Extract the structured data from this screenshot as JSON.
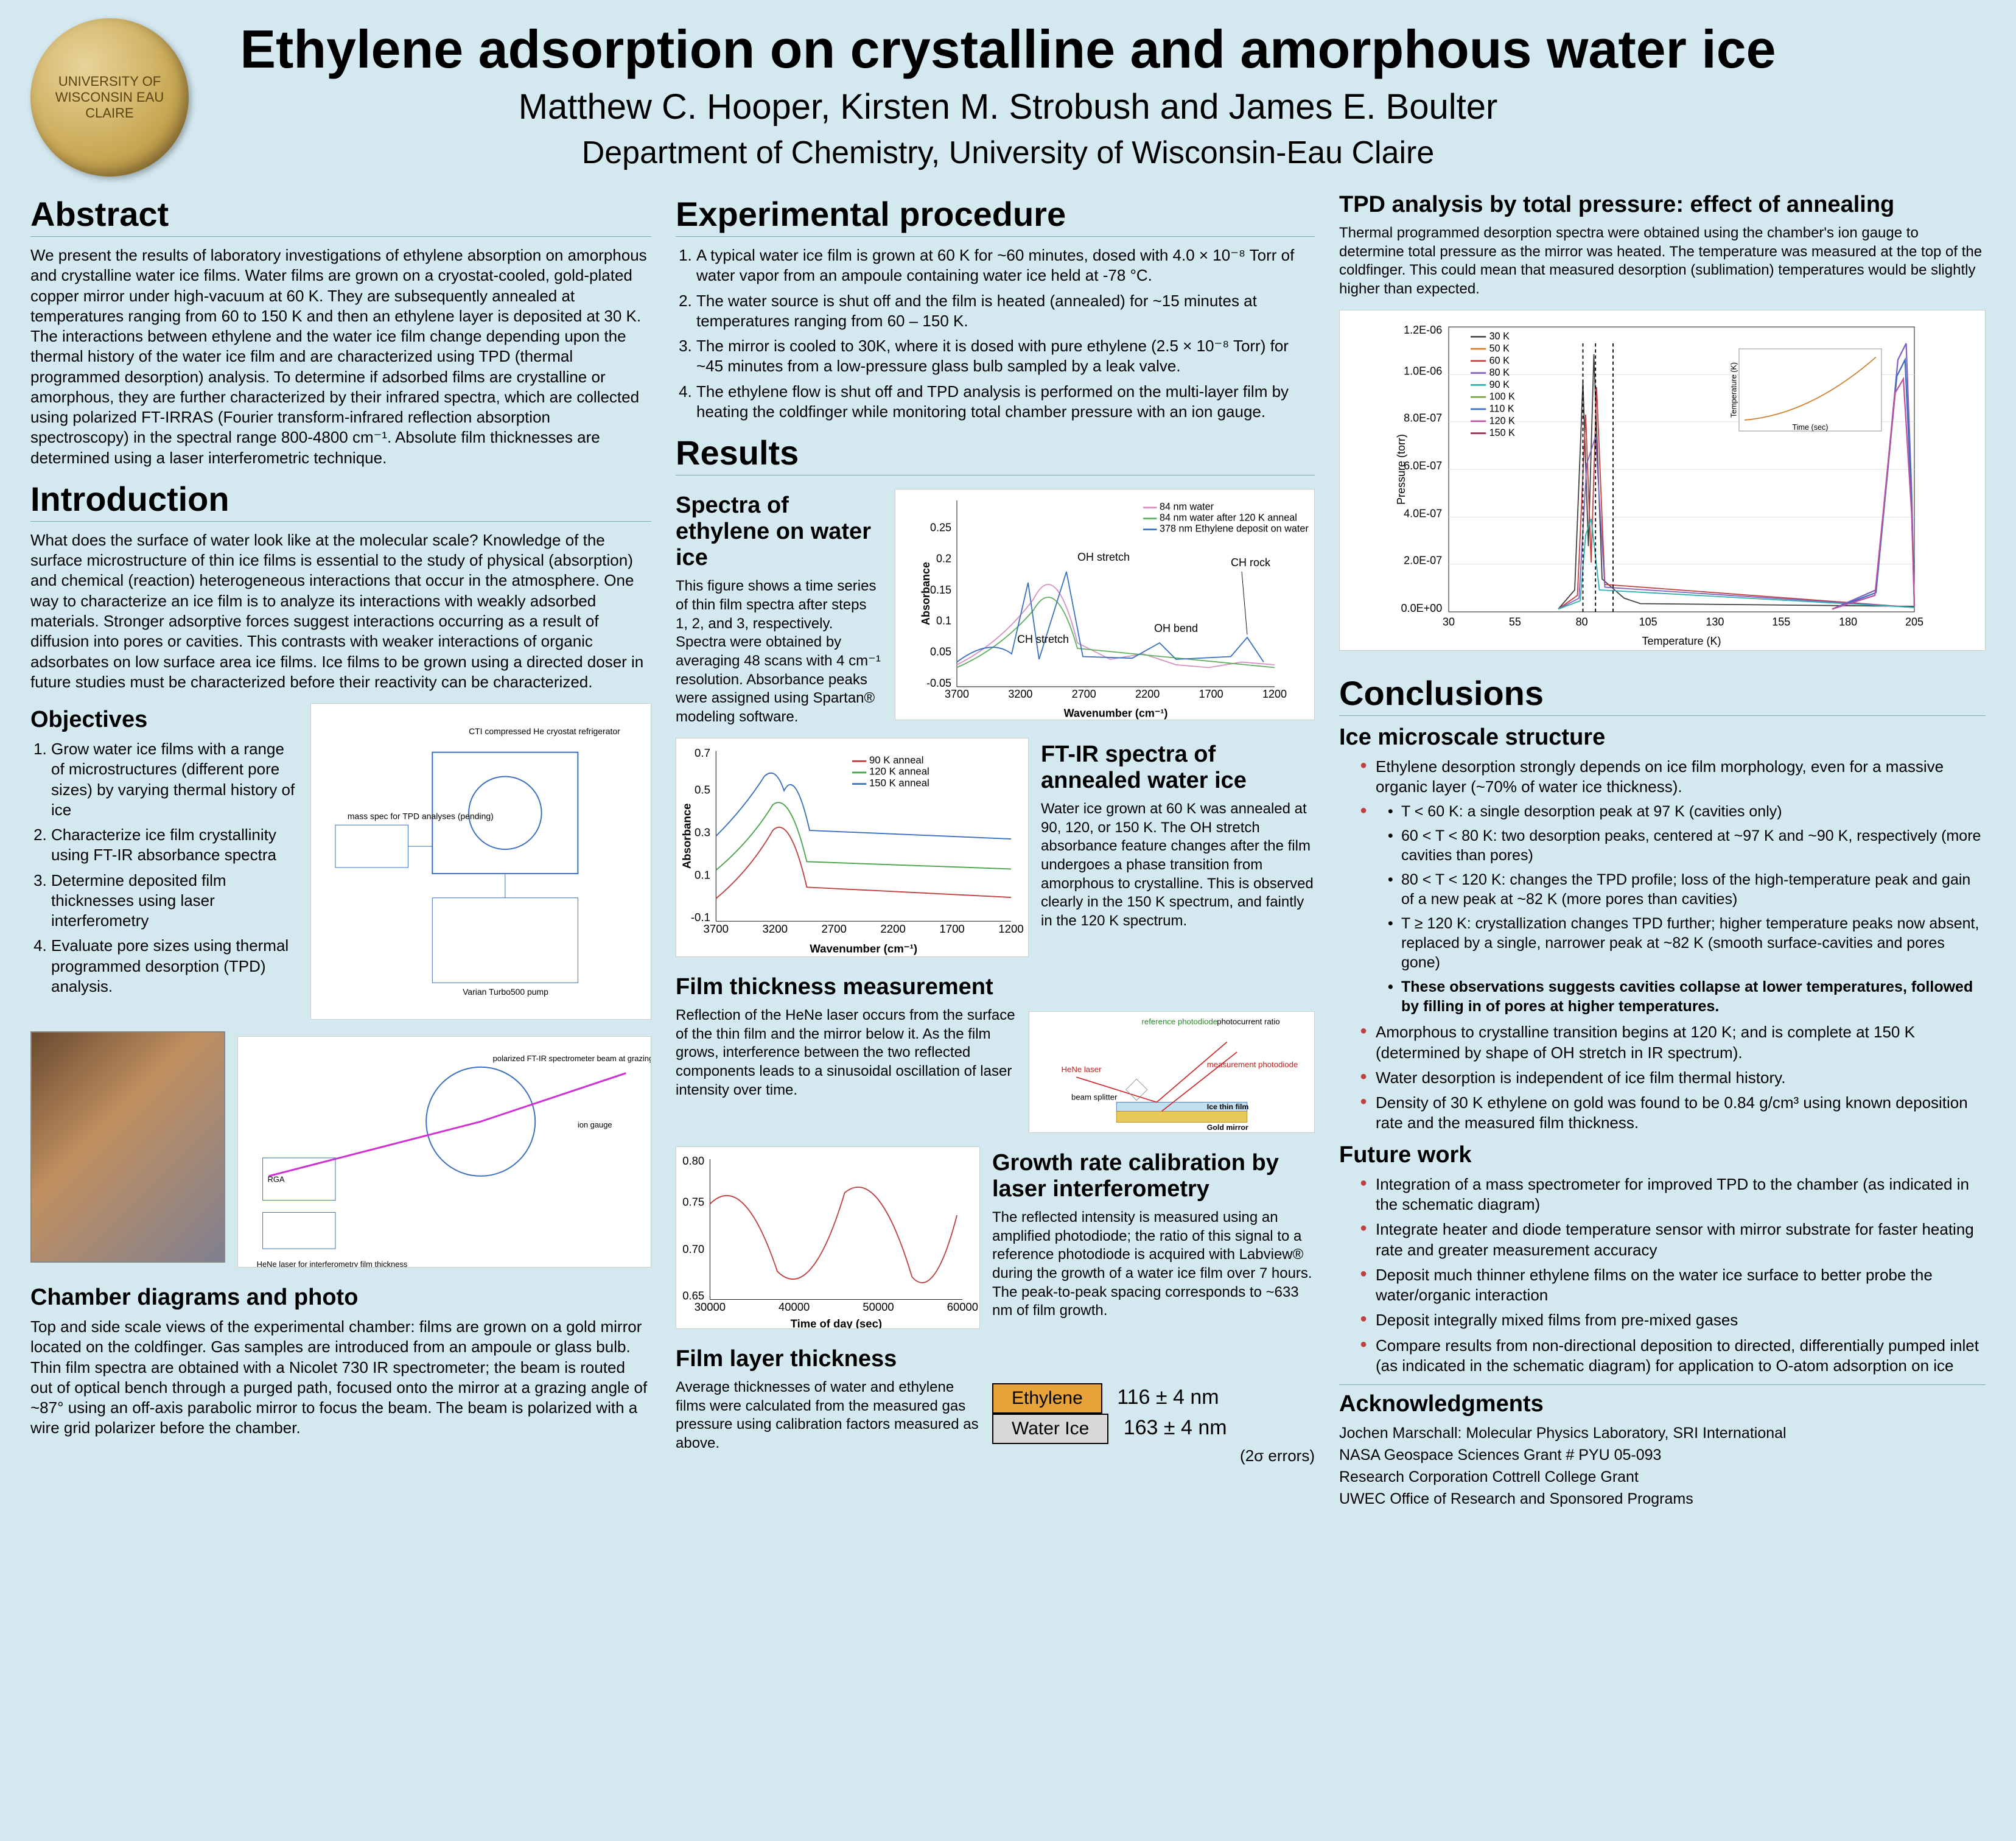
{
  "header": {
    "title": "Ethylene adsorption on crystalline and amorphous water ice",
    "authors": "Matthew C. Hooper, Kirsten M. Strobush and James E. Boulter",
    "dept": "Department of Chemistry, University of Wisconsin-Eau Claire",
    "seal_text": "UNIVERSITY OF WISCONSIN EAU CLAIRE"
  },
  "abstract": {
    "heading": "Abstract",
    "text": "We present the results of laboratory investigations of ethylene absorption on amorphous and crystalline water ice films. Water films are grown on a cryostat-cooled, gold-plated copper mirror under high-vacuum at 60 K. They are subsequently annealed at temperatures ranging from 60 to 150 K and then an ethylene layer is deposited at 30 K. The interactions between ethylene and the water ice film change depending upon the thermal history of the water ice film and are characterized using TPD (thermal programmed desorption) analysis. To determine if adsorbed films are crystalline or amorphous, they are further characterized by their infrared spectra, which are collected using polarized FT-IRRAS (Fourier transform-infrared reflection absorption spectroscopy) in the spectral range 800-4800 cm⁻¹. Absolute film thicknesses are determined using a laser interferometric technique."
  },
  "intro": {
    "heading": "Introduction",
    "text": "What does the surface of water look like at the molecular scale? Knowledge of the surface microstructure of thin ice films is essential to the study of physical (absorption) and chemical (reaction) heterogeneous interactions that occur in the atmosphere. One way to characterize an ice film is to analyze its interactions with weakly adsorbed materials. Stronger adsorptive forces suggest interactions occurring as a result of diffusion into pores or cavities. This contrasts with weaker interactions of organic adsorbates on low surface area ice films. Ice films to be grown using a directed doser in future studies must be characterized before their reactivity can be characterized.",
    "obj_heading": "Objectives",
    "objectives": [
      "Grow water ice films with a range of microstructures (different pore sizes) by varying thermal history of ice",
      "Characterize ice film crystallinity using FT-IR absorbance spectra",
      "Determine deposited film thicknesses using laser interferometry",
      "Evaluate pore sizes using thermal programmed desorption (TPD) analysis."
    ],
    "chamber_heading": "Chamber diagrams and photo",
    "chamber_text": "Top and side scale views of the experimental chamber: films are grown on a gold mirror located on the coldfinger. Gas samples are introduced from an ampoule or glass bulb. Thin film spectra are obtained with a Nicolet 730 IR spectrometer; the beam is routed out of optical bench through a purged path, focused onto the mirror at a grazing angle of ~87° using an off-axis parabolic mirror to focus the beam. The beam is polarized with a wire grid polarizer before the chamber."
  },
  "exp": {
    "heading": "Experimental procedure",
    "steps": [
      "A typical water ice film is grown at 60 K for ~60 minutes, dosed with 4.0 × 10⁻⁸ Torr of water vapor from an ampoule containing water ice held at -78 °C.",
      "The water source is shut off and the film is heated (annealed) for ~15 minutes at temperatures ranging from 60 – 150 K.",
      "The mirror is cooled to 30K, where it is dosed with pure ethylene (2.5 × 10⁻⁸ Torr) for ~45 minutes from a low-pressure glass bulb sampled by a leak valve.",
      "The ethylene flow is shut off and TPD analysis is performed on the multi-layer film by heating the coldfinger while monitoring total chamber pressure with an ion gauge."
    ]
  },
  "results": {
    "heading": "Results",
    "spec1": {
      "heading": "Spectra of ethylene on water ice",
      "text": "This figure shows a time series of thin film spectra after steps 1, 2, and 3, respectively. Spectra were obtained by averaging 48 scans with 4 cm⁻¹ resolution. Absorbance peaks were assigned using Spartan® modeling software.",
      "legend": [
        "84 nm water",
        "84 nm water after 120 K anneal",
        "378 nm Ethylene deposit on water"
      ],
      "legend_colors": [
        "#d48fbf",
        "#5fae5f",
        "#3a6fbf"
      ],
      "annotations": [
        "CH stretch",
        "OH stretch",
        "OH bend",
        "CH rock"
      ],
      "xlabel": "Wavenumber (cm⁻¹)",
      "ylabel": "Absorbance",
      "xticks": [
        "3700",
        "3200",
        "2700",
        "2200",
        "1700",
        "1200"
      ],
      "yticks": [
        "-0.05",
        "0.05",
        "0.1",
        "0.15",
        "0.2",
        "0.25"
      ]
    },
    "spec2": {
      "heading": "FT-IR spectra of annealed water ice",
      "text": "Water ice grown at 60 K was annealed at 90, 120, or 150 K. The OH stretch absorbance feature changes after the film undergoes a phase transition from amorphous to crystalline. This is observed clearly in the 150 K spectrum, and faintly in the 120 K spectrum.",
      "legend": [
        "90 K anneal",
        "120 K anneal",
        "150 K anneal"
      ],
      "legend_colors": [
        "#c04040",
        "#4aa44a",
        "#3a6fbf"
      ],
      "xlabel": "Wavenumber (cm⁻¹)",
      "ylabel": "Absorbance",
      "xticks": [
        "3700",
        "3200",
        "2700",
        "2200",
        "1700",
        "1200"
      ],
      "yticks": [
        "-0.1",
        "0.1",
        "0.3",
        "0.5",
        "0.7"
      ]
    },
    "thick": {
      "heading": "Film thickness measurement",
      "text": "Reflection of the HeNe laser occurs from the surface of the thin film and the mirror below it. As the film grows, interference between the two reflected components leads to a sinusoidal oscillation of laser intensity over time.",
      "diagram_labels": {
        "hene": "HeNe laser",
        "bs": "beam splitter",
        "ref": "reference photodiode",
        "ratio": "photocurrent ratio",
        "meas": "measurement photodiode",
        "ice": "Ice thin film",
        "gold": "Gold mirror"
      }
    },
    "growth": {
      "heading": "Growth rate calibration by laser interferometry",
      "text": "The reflected intensity is measured using an amplified photodiode; the ratio of this signal to a reference photodiode is acquired with Labview® during the growth of a water ice film over 7 hours. The peak-to-peak spacing corresponds to ~633 nm of film growth.",
      "xlabel": "Time of day (sec)",
      "xticks": [
        "30000",
        "40000",
        "50000",
        "60000"
      ],
      "yticks": [
        "0.65",
        "0.70",
        "0.75",
        "0.80"
      ]
    },
    "layer": {
      "heading": "Film layer thickness",
      "text": "Average thicknesses of water and ethylene films were calculated from the measured gas pressure using calibration factors measured as above.",
      "rows": [
        {
          "name": "Ethylene",
          "val": "116 ± 4 nm",
          "bg": "#e8a23a"
        },
        {
          "name": "Water Ice",
          "val": "163 ± 4 nm",
          "bg": "#d8d8d8"
        }
      ],
      "err": "(2σ errors)"
    }
  },
  "tpd": {
    "heading": "TPD analysis by total pressure: effect of annealing",
    "text": "Thermal programmed desorption spectra were obtained using the chamber's ion gauge to determine total pressure as the mirror was heated. The temperature was measured at the top of the coldfinger. This could mean that measured desorption (sublimation) temperatures would be slightly higher than expected.",
    "legend": [
      "30 K",
      "50 K",
      "60 K",
      "80 K",
      "90 K",
      "100 K",
      "110 K",
      "120 K",
      "150 K"
    ],
    "legend_colors": [
      "#404040",
      "#d08030",
      "#c04040",
      "#8060c0",
      "#30b0b0",
      "#7aa040",
      "#3a6fbf",
      "#c050a0",
      "#a03050"
    ],
    "xlabel": "Temperature (K)",
    "ylabel": "Pressure (torr)",
    "xticks": [
      "30",
      "55",
      "80",
      "105",
      "130",
      "155",
      "180",
      "205"
    ],
    "yticks": [
      "0.0E+00",
      "2.0E-07",
      "4.0E-07",
      "6.0E-07",
      "8.0E-07",
      "1.0E-06",
      "1.2E-06"
    ],
    "inset_xlabel": "Time (sec)",
    "inset_ylabel": "Temperature (K)"
  },
  "concl": {
    "heading": "Conclusions",
    "sub1": "Ice microscale structure",
    "points": [
      "Ethylene desorption strongly depends on ice film morphology, even for a massive organic layer (~70% of water ice thickness).",
      "T < 60 K: a single desorption peak at 97 K (cavities only)",
      "60 < T < 80 K: two desorption peaks, centered at ~97 K and ~90 K, respectively (more cavities than pores)",
      "80 < T < 120 K: changes the TPD profile; loss of the high-temperature peak and gain of a new peak at ~82 K (more pores than cavities)",
      "T ≥ 120 K: crystallization changes TPD further; higher temperature peaks now absent, replaced by a single, narrower peak at ~82 K (smooth surface-cavities and pores gone)",
      "These observations suggests cavities collapse at lower temperatures, followed by filling in of pores at higher temperatures."
    ],
    "points2": [
      "Amorphous to crystalline transition begins at 120 K; and is complete at 150 K (determined by shape of OH stretch in IR spectrum).",
      "Water desorption is independent of ice film thermal history.",
      "Density of 30 K ethylene on gold was found to be 0.84 g/cm³ using known deposition rate and the measured film thickness."
    ],
    "future_heading": "Future work",
    "future": [
      "Integration of a mass spectrometer for improved TPD to the chamber (as indicated in the schematic diagram)",
      "Integrate heater and diode temperature sensor with mirror substrate for faster heating rate and greater measurement accuracy",
      "Deposit much thinner ethylene films on the water ice surface to better probe the water/organic interaction",
      "Deposit integrally mixed films from pre-mixed gases",
      "Compare results from non-directional deposition to directed, differentially pumped inlet (as indicated in the schematic diagram) for application to O-atom adsorption on ice"
    ]
  },
  "ack": {
    "heading": "Acknowledgments",
    "lines": [
      "Jochen Marschall: Molecular Physics Laboratory, SRI International",
      "NASA Geospace Sciences Grant # PYU 05-093",
      "Research Corporation Cottrell College Grant",
      "UWEC Office of Research and Sponsored Programs"
    ]
  }
}
